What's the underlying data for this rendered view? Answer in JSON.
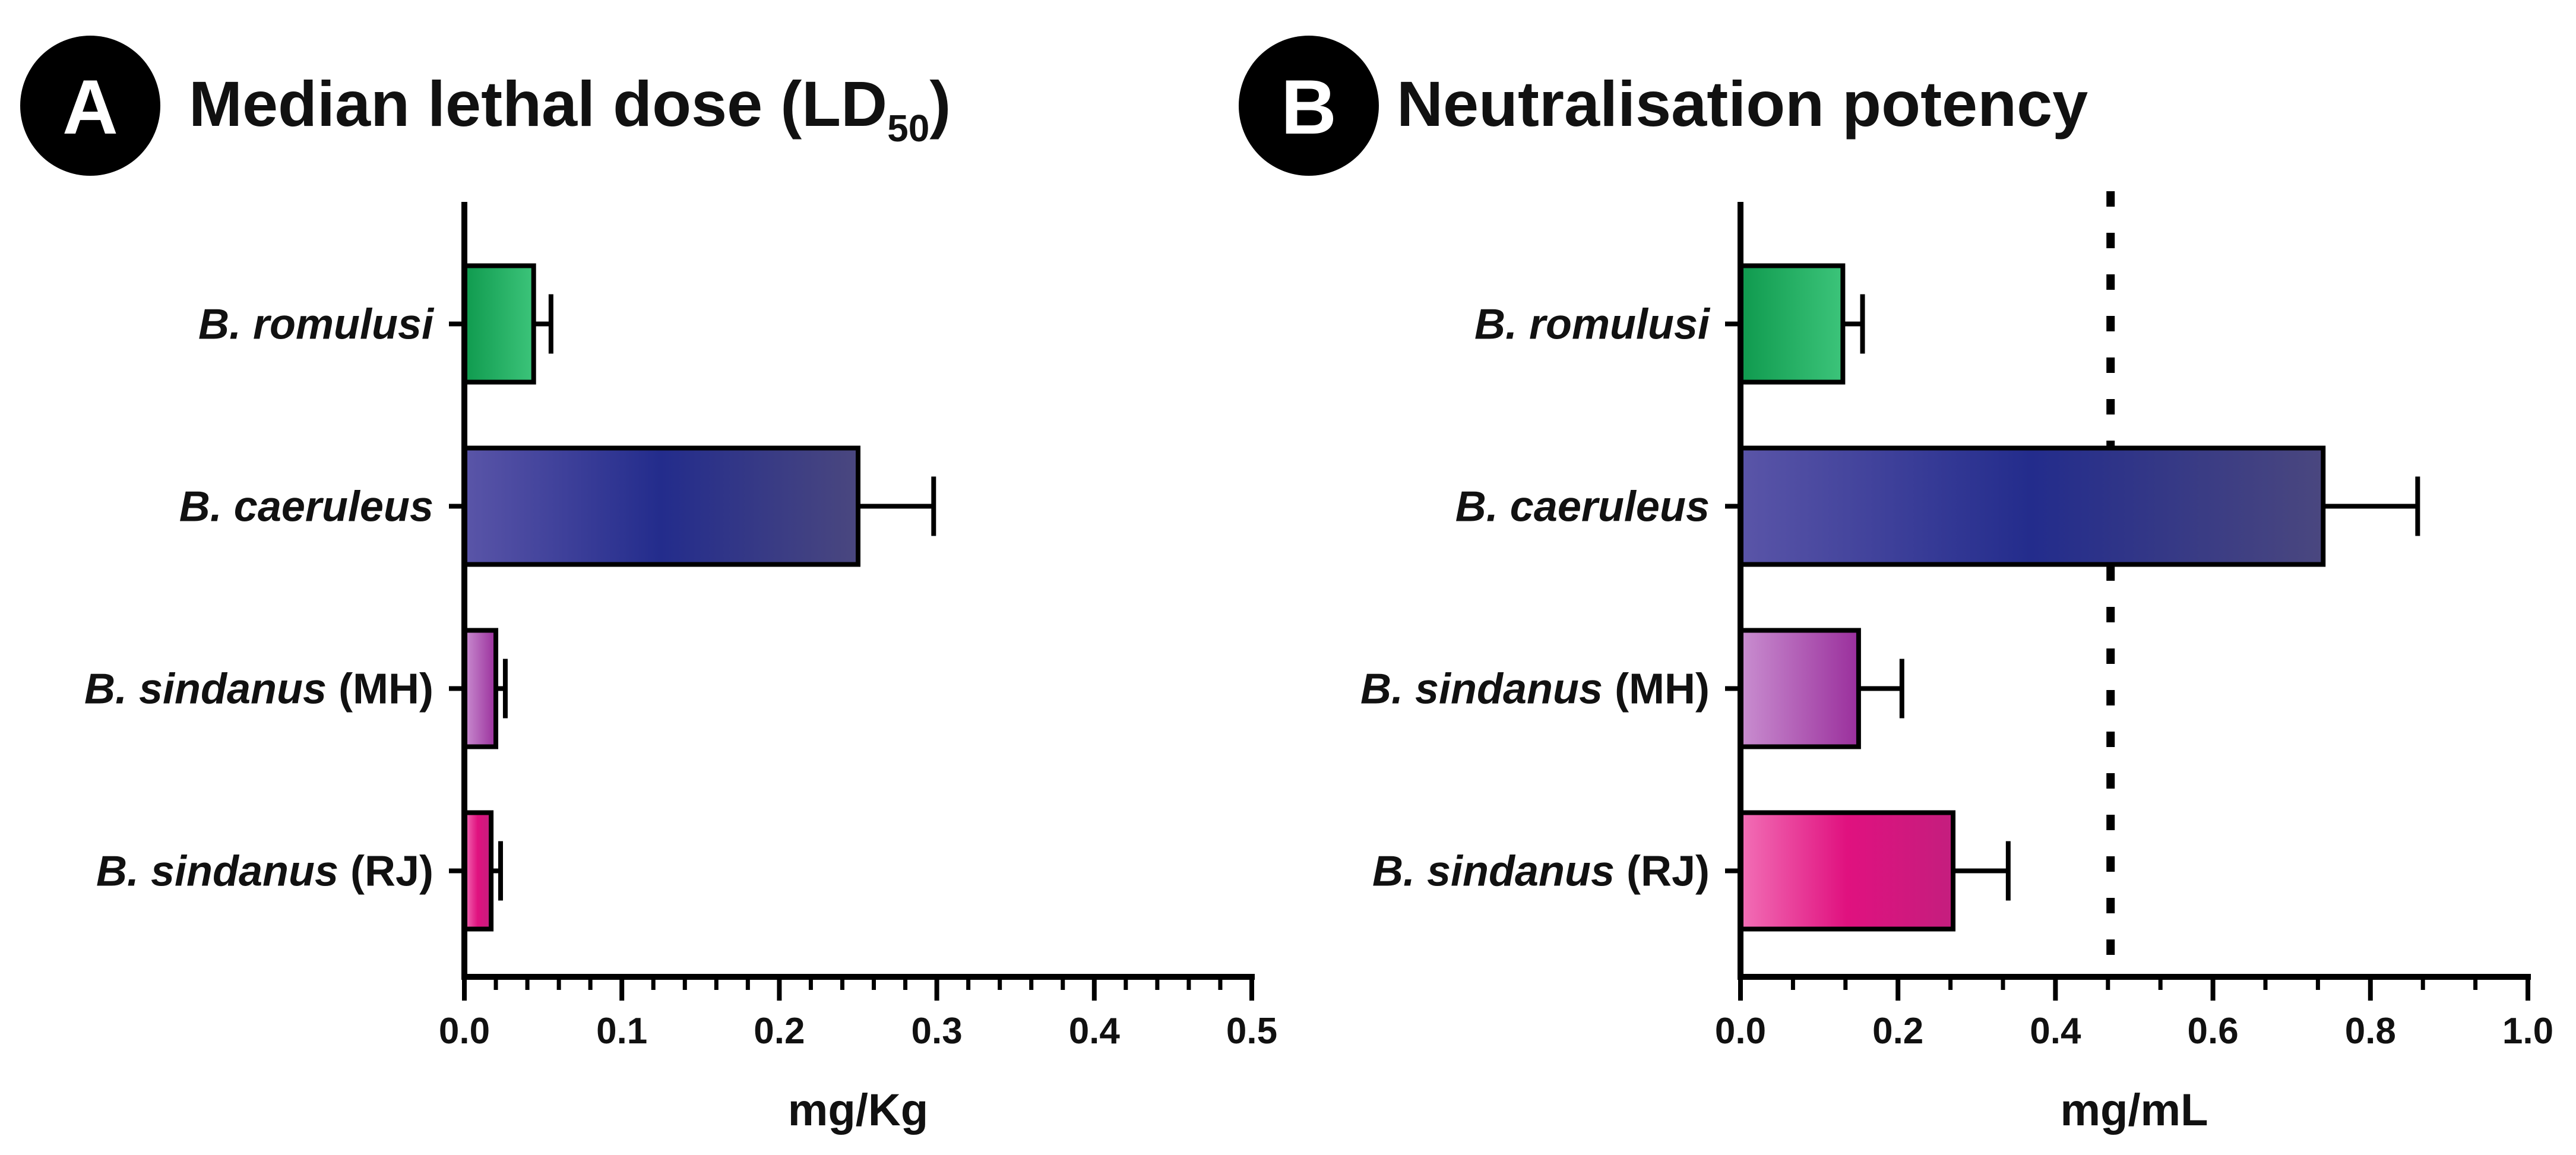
{
  "chart_data": [
    {
      "panel_letter": "A",
      "type": "bar",
      "orientation": "horizontal",
      "title": "Median lethal dose (LD",
      "title_subscript": "50",
      "title_suffix": ")",
      "categories": [
        {
          "species": "B. romulusi",
          "strain": ""
        },
        {
          "species": "B. caeruleus",
          "strain": ""
        },
        {
          "species": "B. sindanus",
          "strain": "(MH)"
        },
        {
          "species": "B. sindanus",
          "strain": "(RJ)"
        }
      ],
      "values": [
        0.044,
        0.25,
        0.02,
        0.017
      ],
      "errors": [
        0.011,
        0.048,
        0.006,
        0.006
      ],
      "xlabel": "mg/Kg",
      "xlim": [
        0,
        0.5
      ],
      "ticks": [
        0.0,
        0.1,
        0.2,
        0.3,
        0.4,
        0.5
      ],
      "tick_labels": [
        "0.0",
        "0.1",
        "0.2",
        "0.3",
        "0.4",
        "0.5"
      ],
      "minor_ticks_per_major": 4,
      "reference_line": null
    },
    {
      "panel_letter": "B",
      "type": "bar",
      "orientation": "horizontal",
      "title": "Neutralisation potency",
      "title_subscript": "",
      "title_suffix": "",
      "categories": [
        {
          "species": "B. romulusi",
          "strain": ""
        },
        {
          "species": "B. caeruleus",
          "strain": ""
        },
        {
          "species": "B. sindanus",
          "strain": "(MH)"
        },
        {
          "species": "B. sindanus",
          "strain": "(RJ)"
        }
      ],
      "values": [
        0.13,
        0.74,
        0.15,
        0.27
      ],
      "errors": [
        0.025,
        0.12,
        0.055,
        0.07
      ],
      "xlabel": "mg/mL",
      "xlim": [
        0,
        1.0
      ],
      "ticks": [
        0.0,
        0.2,
        0.4,
        0.6,
        0.8,
        1.0
      ],
      "tick_labels": [
        "0.0",
        "0.2",
        "0.4",
        "0.6",
        "0.8",
        "1.0"
      ],
      "minor_ticks_per_major": 2,
      "reference_line": 0.47
    }
  ],
  "colors": {
    "romulusi": [
      "#0f9a4e",
      "#3cc47a"
    ],
    "caeruleus": [
      "#5a55a8",
      "#232c8c",
      "#4a477f"
    ],
    "sindanus_mh": [
      "#c98ed0",
      "#9a2f9c"
    ],
    "sindanus_rj": [
      "#f26fb6",
      "#e0117f",
      "#c41e7e"
    ],
    "badge": "#000000",
    "axis": "#000000"
  }
}
